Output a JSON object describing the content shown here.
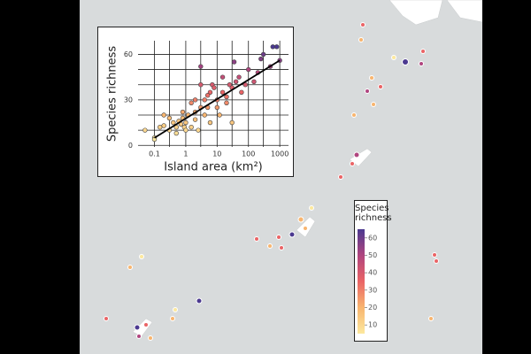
{
  "chart_data": {
    "type": "scatter",
    "y_label": "Species richness",
    "x_label": "Island area (km²)",
    "log_x": true,
    "xlim": [
      0.03,
      1900
    ],
    "ylim": [
      -1,
      69
    ],
    "xticks": [
      0.1,
      1,
      10,
      100,
      1000
    ],
    "xminorticks": [
      0.3,
      3,
      30,
      300
    ],
    "yticks": [
      0,
      30,
      60
    ],
    "yminorticks": [
      10,
      20,
      40,
      50
    ],
    "grid": true,
    "x": [
      0.05,
      0.1,
      0.1,
      0.15,
      0.2,
      0.2,
      0.3,
      0.4,
      0.5,
      0.5,
      0.6,
      0.7,
      0.8,
      0.9,
      1,
      1,
      1.2,
      1.5,
      1.5,
      2,
      2,
      2.5,
      3,
      3,
      3,
      4,
      4,
      5,
      6,
      6,
      7,
      8,
      10,
      10,
      12,
      15,
      15,
      20,
      20,
      25,
      30,
      35,
      40,
      50,
      60,
      80,
      100,
      150,
      200,
      250,
      300,
      500,
      600,
      800,
      1000,
      0.3,
      0.8,
      2,
      5,
      30
    ],
    "values": [
      10,
      5,
      4,
      12,
      20,
      13,
      10,
      15,
      8,
      12,
      16,
      14,
      18,
      12,
      10,
      15,
      20,
      28,
      12,
      22,
      17,
      10,
      25,
      40,
      52,
      20,
      30,
      25,
      15,
      35,
      40,
      38,
      30,
      25,
      20,
      35,
      45,
      28,
      32,
      40,
      38,
      55,
      42,
      45,
      35,
      40,
      50,
      42,
      48,
      57,
      60,
      52,
      65,
      65,
      56,
      18,
      22,
      30,
      33,
      15
    ],
    "fit": {
      "x": [
        0.1,
        1000
      ],
      "y": [
        5,
        56
      ]
    },
    "colorbar": {
      "title": "Species richness",
      "lim": [
        5,
        65
      ],
      "ticks": [
        10,
        20,
        30,
        40,
        50,
        60
      ],
      "colormap": [
        "#fce89e",
        "#f8b56f",
        "#ea6466",
        "#b0457f",
        "#4b3990"
      ]
    }
  }
}
